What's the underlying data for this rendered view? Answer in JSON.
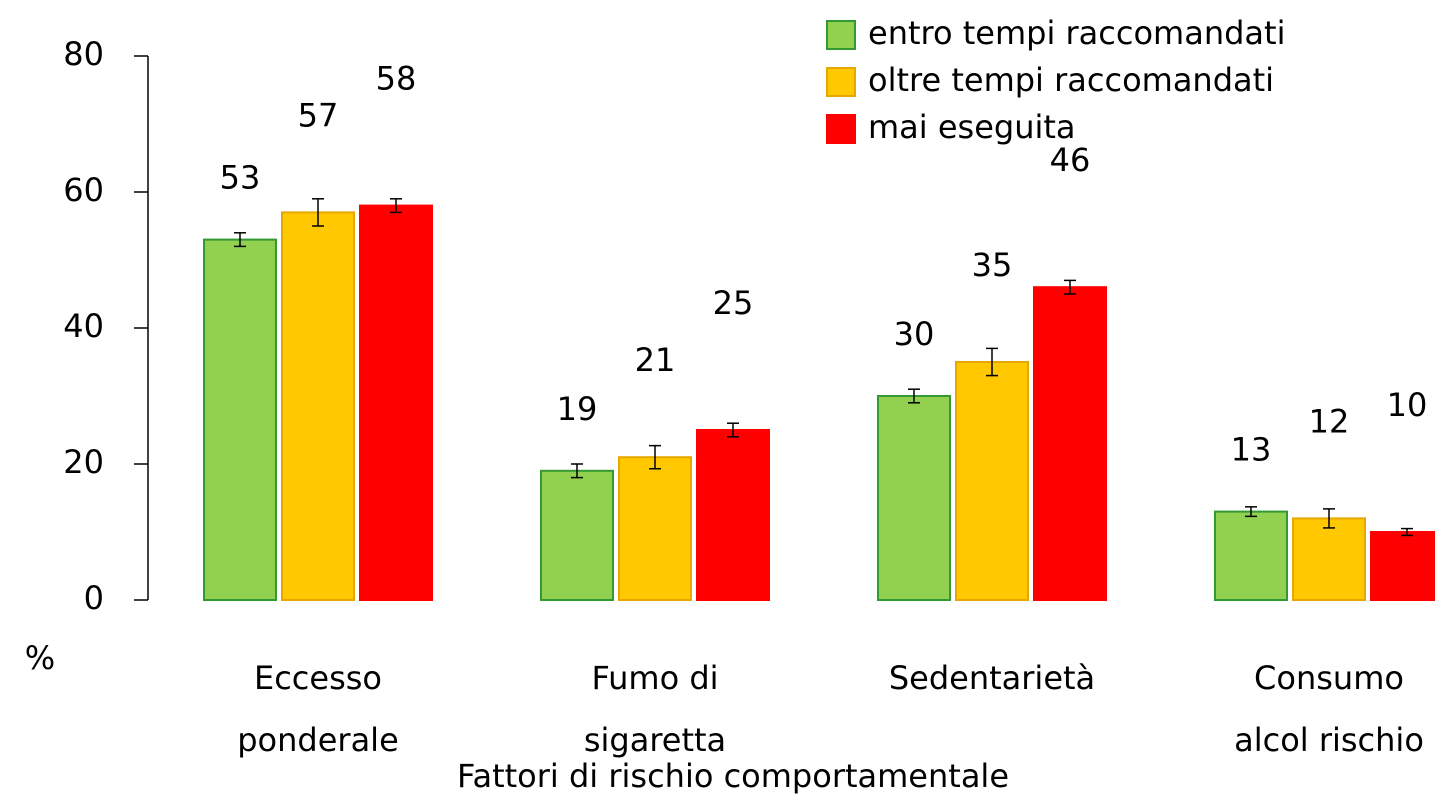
{
  "chart_data": {
    "type": "bar",
    "x_label": "Fattori di rischio comportamentale",
    "y_label": "%",
    "categories": [
      [
        "Eccesso",
        "ponderale"
      ],
      [
        "Fumo di",
        "sigaretta"
      ],
      [
        "Sedentarietà"
      ],
      [
        "Consumo",
        "alcol rischio"
      ]
    ],
    "series": [
      {
        "name": "entro tempi raccomandati",
        "color": "#92d050",
        "stroke": "#339933",
        "values": [
          53,
          19,
          30,
          13
        ],
        "errors": [
          1,
          1,
          1,
          0.7
        ]
      },
      {
        "name": "oltre tempi raccomandati",
        "color": "#ffc800",
        "stroke": "#e6a800",
        "values": [
          57,
          21,
          35,
          12
        ],
        "errors": [
          2,
          1.7,
          2,
          1.4
        ]
      },
      {
        "name": "mai eseguita",
        "color": "#ff0000",
        "stroke": "#ff0000",
        "values": [
          58,
          25,
          46,
          10
        ],
        "errors": [
          1,
          1,
          1,
          0.5
        ]
      }
    ],
    "ylim": [
      0,
      80
    ],
    "yticks": [
      0,
      20,
      40,
      60,
      80
    ],
    "grid": false,
    "legend": "top-right"
  }
}
